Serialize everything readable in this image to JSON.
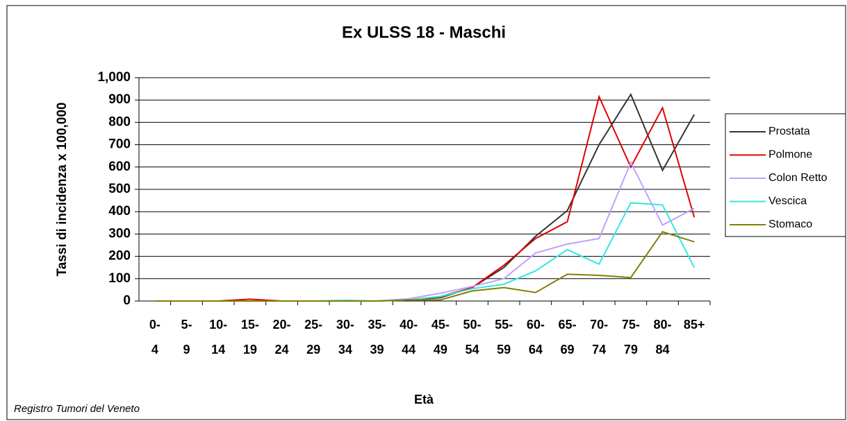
{
  "chart_data": {
    "type": "line",
    "title": "Ex ULSS 18 - Maschi",
    "xlabel": "Età",
    "ylabel": "Tassi di incidenza x 100,000",
    "note": "Registro Tumori del Veneto",
    "categories": [
      "0-4",
      "5-9",
      "10-14",
      "15-19",
      "20-24",
      "25-29",
      "30-34",
      "35-39",
      "40-44",
      "45-49",
      "50-54",
      "55-59",
      "60-64",
      "65-69",
      "70-74",
      "75-79",
      "80-84",
      "85+"
    ],
    "ylim": [
      0,
      1000
    ],
    "yticks": [
      0,
      100,
      200,
      300,
      400,
      500,
      600,
      700,
      800,
      900,
      {
        "value": 1000,
        "label": "1,000"
      }
    ],
    "grid": true,
    "legend": "right",
    "series": [
      {
        "name": "Prostata",
        "color": "#333333",
        "values": [
          0,
          0,
          0,
          0,
          0,
          0,
          0,
          0,
          5,
          15,
          60,
          150,
          290,
          405,
          700,
          925,
          585,
          835
        ]
      },
      {
        "name": "Polmone",
        "color": "#e00000",
        "values": [
          0,
          0,
          0,
          8,
          0,
          0,
          0,
          0,
          5,
          20,
          60,
          160,
          280,
          355,
          915,
          600,
          865,
          375
        ]
      },
      {
        "name": "Colon Retto",
        "color": "#c0a0ff",
        "values": [
          0,
          0,
          0,
          0,
          0,
          0,
          0,
          0,
          10,
          35,
          65,
          100,
          215,
          255,
          280,
          620,
          340,
          415
        ]
      },
      {
        "name": "Vescica",
        "color": "#33e6e6",
        "values": [
          0,
          0,
          0,
          0,
          0,
          0,
          3,
          0,
          5,
          20,
          55,
          75,
          135,
          230,
          165,
          440,
          430,
          150
        ]
      },
      {
        "name": "Stomaco",
        "color": "#808000",
        "values": [
          0,
          0,
          0,
          0,
          0,
          0,
          0,
          0,
          5,
          5,
          45,
          60,
          38,
          120,
          115,
          105,
          310,
          265
        ]
      }
    ]
  }
}
